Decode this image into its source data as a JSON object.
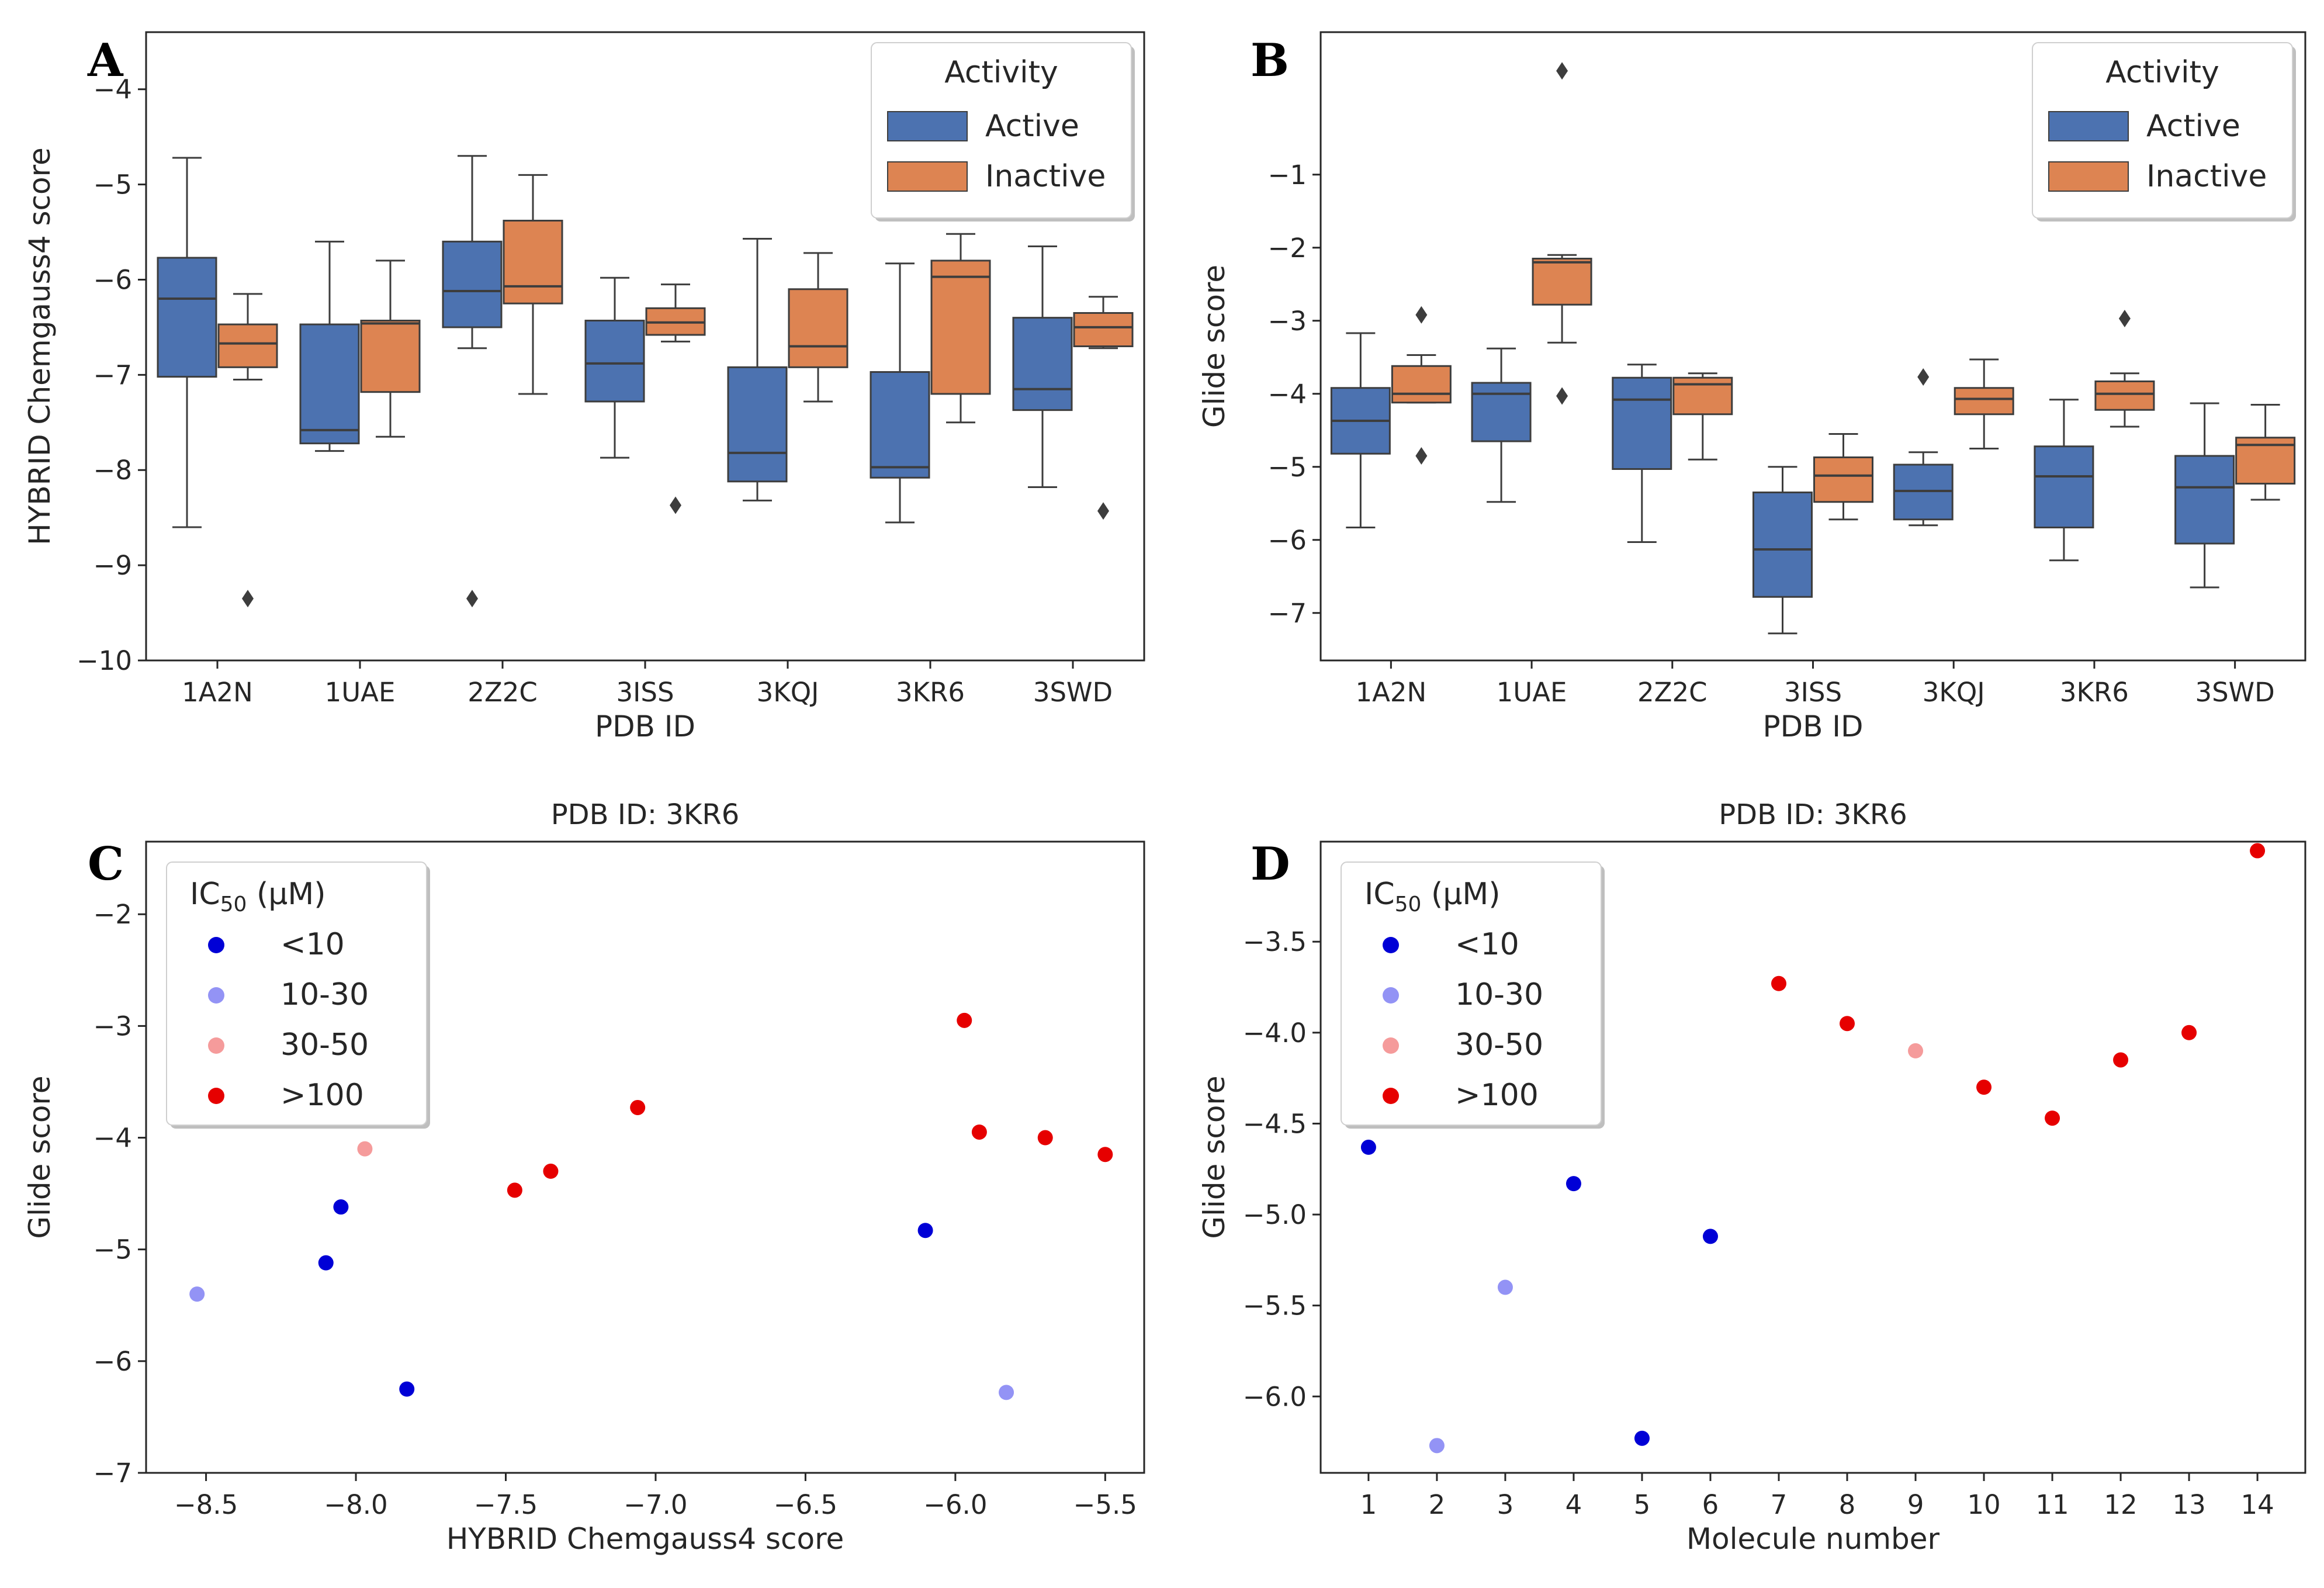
{
  "colors": {
    "active": "#4c72b0",
    "inactive": "#dd8452",
    "box_line": "#3d3d3d",
    "ic_lt10": "#0000d6",
    "ic_10_30": "#9393f5",
    "ic_30_50": "#f59b9b",
    "ic_gt100": "#e60000"
  },
  "chart_data": [
    {
      "panel": "A",
      "type": "box",
      "xlabel": "PDB ID",
      "ylabel": "HYBRID Chemgauss4 score",
      "ylim": [
        -10,
        -3.4
      ],
      "yticks": [
        -10,
        -9,
        -8,
        -7,
        -6,
        -5,
        -4
      ],
      "categories": [
        "1A2N",
        "1UAE",
        "2Z2C",
        "3ISS",
        "3KQJ",
        "3KR6",
        "3SWD"
      ],
      "legend": {
        "title": "Activity",
        "entries": [
          "Active",
          "Inactive"
        ],
        "position": "top-right"
      },
      "series": [
        {
          "name": "Active",
          "boxes": [
            {
              "q1": -7.02,
              "median": -6.2,
              "q3": -5.77,
              "wlo": -8.6,
              "whi": -4.72,
              "outliers": []
            },
            {
              "q1": -7.72,
              "median": -7.58,
              "q3": -6.47,
              "wlo": -7.8,
              "whi": -5.6,
              "outliers": []
            },
            {
              "q1": -6.5,
              "median": -6.12,
              "q3": -5.6,
              "wlo": -6.72,
              "whi": -4.7,
              "outliers": [
                -9.35
              ]
            },
            {
              "q1": -7.28,
              "median": -6.88,
              "q3": -6.43,
              "wlo": -7.87,
              "whi": -5.98,
              "outliers": []
            },
            {
              "q1": -8.12,
              "median": -7.82,
              "q3": -6.92,
              "wlo": -8.32,
              "whi": -5.57,
              "outliers": []
            },
            {
              "q1": -8.08,
              "median": -7.97,
              "q3": -6.97,
              "wlo": -8.55,
              "whi": -5.83,
              "outliers": []
            },
            {
              "q1": -7.37,
              "median": -7.15,
              "q3": -6.4,
              "wlo": -8.18,
              "whi": -5.65,
              "outliers": []
            }
          ]
        },
        {
          "name": "Inactive",
          "boxes": [
            {
              "q1": -6.92,
              "median": -6.67,
              "q3": -6.47,
              "wlo": -7.05,
              "whi": -6.15,
              "outliers": [
                -9.35
              ]
            },
            {
              "q1": -7.18,
              "median": -6.46,
              "q3": -6.43,
              "wlo": -7.65,
              "whi": -5.8,
              "outliers": []
            },
            {
              "q1": -6.25,
              "median": -6.07,
              "q3": -5.38,
              "wlo": -7.2,
              "whi": -4.9,
              "outliers": []
            },
            {
              "q1": -6.58,
              "median": -6.45,
              "q3": -6.3,
              "wlo": -6.65,
              "whi": -6.05,
              "outliers": [
                -8.37
              ]
            },
            {
              "q1": -6.92,
              "median": -6.7,
              "q3": -6.1,
              "wlo": -7.28,
              "whi": -5.72,
              "outliers": []
            },
            {
              "q1": -7.2,
              "median": -5.97,
              "q3": -5.8,
              "wlo": -7.5,
              "whi": -5.52,
              "outliers": []
            },
            {
              "q1": -6.7,
              "median": -6.5,
              "q3": -6.35,
              "wlo": -6.72,
              "whi": -6.18,
              "outliers": [
                -8.43
              ]
            }
          ]
        }
      ]
    },
    {
      "panel": "B",
      "type": "box",
      "xlabel": "PDB ID",
      "ylabel": "Glide score",
      "ylim": [
        -7.65,
        0.95
      ],
      "yticks": [
        -7,
        -6,
        -5,
        -4,
        -3,
        -2,
        -1
      ],
      "categories": [
        "1A2N",
        "1UAE",
        "2Z2C",
        "3ISS",
        "3KQJ",
        "3KR6",
        "3SWD"
      ],
      "legend": {
        "title": "Activity",
        "entries": [
          "Active",
          "Inactive"
        ],
        "position": "top-right"
      },
      "series": [
        {
          "name": "Active",
          "boxes": [
            {
              "q1": -4.82,
              "median": -4.37,
              "q3": -3.92,
              "wlo": -5.83,
              "whi": -3.17,
              "outliers": []
            },
            {
              "q1": -4.65,
              "median": -4.0,
              "q3": -3.85,
              "wlo": -5.48,
              "whi": -3.38,
              "outliers": []
            },
            {
              "q1": -5.03,
              "median": -4.08,
              "q3": -3.78,
              "wlo": -6.03,
              "whi": -3.6,
              "outliers": []
            },
            {
              "q1": -6.78,
              "median": -6.13,
              "q3": -5.35,
              "wlo": -7.28,
              "whi": -5.0,
              "outliers": []
            },
            {
              "q1": -5.72,
              "median": -5.33,
              "q3": -4.97,
              "wlo": -5.8,
              "whi": -4.8,
              "outliers": [
                -3.77
              ]
            },
            {
              "q1": -5.83,
              "median": -5.13,
              "q3": -4.72,
              "wlo": -6.28,
              "whi": -4.08,
              "outliers": []
            },
            {
              "q1": -6.05,
              "median": -5.28,
              "q3": -4.85,
              "wlo": -6.65,
              "whi": -4.13,
              "outliers": []
            }
          ]
        },
        {
          "name": "Inactive",
          "boxes": [
            {
              "q1": -4.12,
              "median": -4.0,
              "q3": -3.62,
              "wlo": -4.12,
              "whi": -3.47,
              "outliers": [
                -2.92,
                -4.85
              ]
            },
            {
              "q1": -2.78,
              "median": -2.2,
              "q3": -2.15,
              "wlo": -3.3,
              "whi": -2.1,
              "outliers": [
                0.42,
                -4.03
              ]
            },
            {
              "q1": -4.28,
              "median": -3.87,
              "q3": -3.78,
              "wlo": -4.9,
              "whi": -3.72,
              "outliers": []
            },
            {
              "q1": -5.48,
              "median": -5.12,
              "q3": -4.87,
              "wlo": -5.72,
              "whi": -4.55,
              "outliers": []
            },
            {
              "q1": -4.28,
              "median": -4.07,
              "q3": -3.92,
              "wlo": -4.75,
              "whi": -3.53,
              "outliers": []
            },
            {
              "q1": -4.22,
              "median": -4.0,
              "q3": -3.83,
              "wlo": -4.45,
              "whi": -3.72,
              "outliers": [
                -2.97
              ]
            },
            {
              "q1": -5.23,
              "median": -4.7,
              "q3": -4.6,
              "wlo": -5.45,
              "whi": -4.15,
              "outliers": []
            }
          ]
        }
      ]
    },
    {
      "panel": "C",
      "type": "scatter",
      "title": "PDB ID: 3KR6",
      "xlabel": "HYBRID Chemgauss4 score",
      "ylabel": "Glide score",
      "xlim": [
        -8.7,
        -5.37
      ],
      "ylim": [
        -7.0,
        -1.35
      ],
      "xticks": [
        -8.5,
        -8.0,
        -7.5,
        -7.0,
        -6.5,
        -6.0,
        -5.5
      ],
      "xtick_labels": [
        "-8.5",
        "-8.0",
        "-7.5",
        "-7.0",
        "-6.5",
        "-6.0",
        "-5.5"
      ],
      "yticks": [
        -7,
        -6,
        -5,
        -4,
        -3,
        -2
      ],
      "ytick_labels": [
        "-7",
        "-6",
        "-5",
        "-4",
        "-3",
        "-2"
      ],
      "legend": {
        "title": "IC50 (μM)",
        "entries": [
          "<10",
          "10-30",
          "30-50",
          ">100"
        ],
        "position": "top-left"
      },
      "points": [
        {
          "x": -8.05,
          "y": -4.62,
          "group": "<10"
        },
        {
          "x": -8.1,
          "y": -5.12,
          "group": "<10"
        },
        {
          "x": -7.83,
          "y": -6.25,
          "group": "<10"
        },
        {
          "x": -6.1,
          "y": -4.83,
          "group": "<10"
        },
        {
          "x": -8.53,
          "y": -5.4,
          "group": "10-30"
        },
        {
          "x": -5.83,
          "y": -6.28,
          "group": "10-30"
        },
        {
          "x": -7.97,
          "y": -4.1,
          "group": "30-50"
        },
        {
          "x": -7.47,
          "y": -4.47,
          "group": ">100"
        },
        {
          "x": -7.35,
          "y": -4.3,
          "group": ">100"
        },
        {
          "x": -7.06,
          "y": -3.73,
          "group": ">100"
        },
        {
          "x": -5.97,
          "y": -2.95,
          "group": ">100"
        },
        {
          "x": -5.92,
          "y": -3.95,
          "group": ">100"
        },
        {
          "x": -5.7,
          "y": -4.0,
          "group": ">100"
        },
        {
          "x": -5.5,
          "y": -4.15,
          "group": ">100"
        }
      ]
    },
    {
      "panel": "D",
      "type": "scatter",
      "title": "PDB ID: 3KR6",
      "xlabel": "Molecule number",
      "ylabel": "Glide score",
      "xlim": [
        0.3,
        14.7
      ],
      "ylim": [
        -6.42,
        -2.95
      ],
      "xticks": [
        1,
        2,
        3,
        4,
        5,
        6,
        7,
        8,
        9,
        10,
        11,
        12,
        13,
        14
      ],
      "xtick_labels": [
        "1",
        "2",
        "3",
        "4",
        "5",
        "6",
        "7",
        "8",
        "9",
        "10",
        "11",
        "12",
        "13",
        "14"
      ],
      "yticks": [
        -6.0,
        -5.5,
        -5.0,
        -4.5,
        -4.0,
        -3.5
      ],
      "ytick_labels": [
        "-6.0",
        "-5.5",
        "-5.0",
        "-4.5",
        "-4.0",
        "-3.5"
      ],
      "legend": {
        "title": "IC50 (μM)",
        "entries": [
          "<10",
          "10-30",
          "30-50",
          ">100"
        ],
        "position": "top-left"
      },
      "points": [
        {
          "x": 1,
          "y": -4.63,
          "group": "<10"
        },
        {
          "x": 2,
          "y": -6.27,
          "group": "10-30"
        },
        {
          "x": 3,
          "y": -5.4,
          "group": "10-30"
        },
        {
          "x": 4,
          "y": -4.83,
          "group": "<10"
        },
        {
          "x": 5,
          "y": -6.23,
          "group": "<10"
        },
        {
          "x": 6,
          "y": -5.12,
          "group": "<10"
        },
        {
          "x": 7,
          "y": -3.73,
          "group": ">100"
        },
        {
          "x": 8,
          "y": -3.95,
          "group": ">100"
        },
        {
          "x": 9,
          "y": -4.1,
          "group": "30-50"
        },
        {
          "x": 10,
          "y": -4.3,
          "group": ">100"
        },
        {
          "x": 11,
          "y": -4.47,
          "group": ">100"
        },
        {
          "x": 12,
          "y": -4.15,
          "group": ">100"
        },
        {
          "x": 13,
          "y": -4.0,
          "group": ">100"
        },
        {
          "x": 14,
          "y": -3.0,
          "group": ">100"
        }
      ]
    }
  ]
}
